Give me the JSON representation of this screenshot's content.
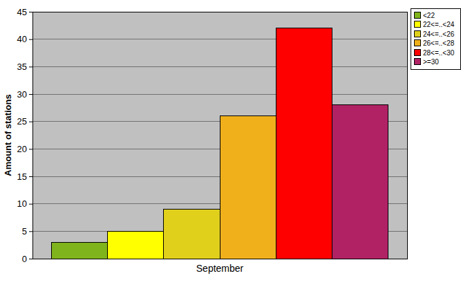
{
  "chart_data": {
    "type": "bar",
    "y_label": "Amount of stations",
    "categories": [
      "September"
    ],
    "series": [
      {
        "name": "<22",
        "color": "#80b41c",
        "values": [
          3
        ]
      },
      {
        "name": "22<=..<24",
        "color": "#ffff00",
        "values": [
          5
        ]
      },
      {
        "name": "24<=..<26",
        "color": "#e0d01c",
        "values": [
          9
        ]
      },
      {
        "name": "26<=..<28",
        "color": "#f0b01c",
        "values": [
          26
        ]
      },
      {
        "name": "28<=..<30",
        "color": "#ff0000",
        "values": [
          42
        ]
      },
      {
        "name": ">=30",
        "color": "#b02264",
        "values": [
          28
        ]
      }
    ],
    "ylim": [
      0,
      45
    ],
    "yticks": [
      0,
      5,
      10,
      15,
      20,
      25,
      30,
      35,
      40,
      45
    ],
    "grid": true,
    "legend": "right"
  }
}
